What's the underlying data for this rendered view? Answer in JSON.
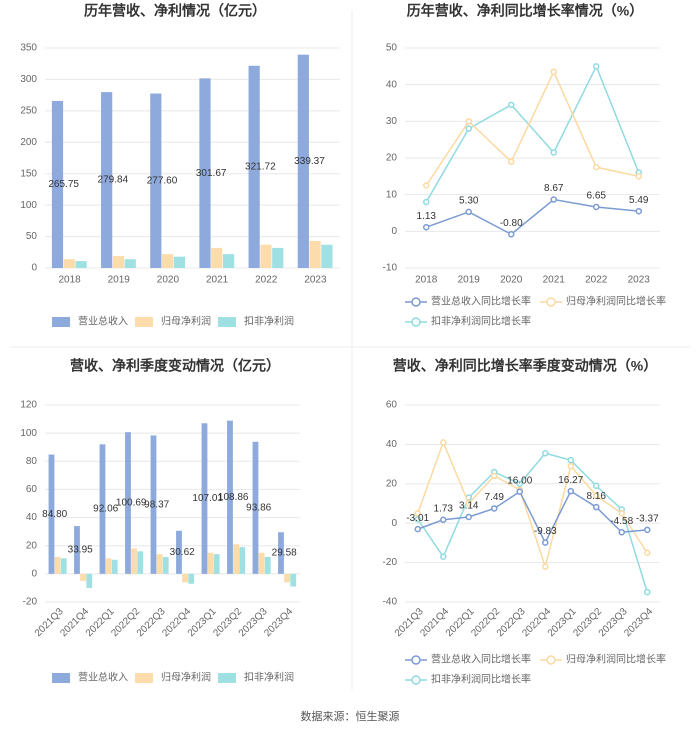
{
  "chart_data": [
    {
      "type": "bar",
      "title": "历年营收、净利情况（亿元）",
      "categories": [
        "2018",
        "2019",
        "2020",
        "2021",
        "2022",
        "2023"
      ],
      "series": [
        {
          "name": "营业总收入",
          "color": "#8eaadc",
          "values": [
            265.75,
            279.84,
            277.6,
            301.67,
            321.72,
            339.37
          ],
          "value_labels": [
            "265.75",
            "279.84",
            "277.60",
            "301.67",
            "321.72",
            "339.37"
          ]
        },
        {
          "name": "归母净利润",
          "color": "#fcdcaa",
          "values": [
            14,
            19,
            22,
            32,
            37,
            43
          ]
        },
        {
          "name": "扣非净利润",
          "color": "#9fe0e3",
          "values": [
            11,
            14,
            18,
            22,
            32,
            37
          ]
        }
      ],
      "ylim": [
        0,
        350
      ],
      "yticks": [
        0,
        50,
        100,
        150,
        200,
        250,
        300,
        350
      ],
      "grid": true
    },
    {
      "type": "line",
      "title": "历年营收、净利同比增长率情况（%）",
      "categories": [
        "2018",
        "2019",
        "2020",
        "2021",
        "2022",
        "2023"
      ],
      "series": [
        {
          "name": "营业总收入同比增长率",
          "color": "#7b9bd2",
          "values": [
            1.13,
            5.3,
            -0.8,
            8.67,
            6.65,
            5.49
          ],
          "value_labels": [
            "1.13",
            "5.30",
            "-0.80",
            "8.67",
            "6.65",
            "5.49"
          ]
        },
        {
          "name": "归母净利润同比增长率",
          "color": "#fcd9a1",
          "values": [
            12.5,
            30,
            19,
            43.5,
            17.5,
            15
          ]
        },
        {
          "name": "扣非净利润同比增长率",
          "color": "#8fdbe0",
          "values": [
            8,
            28,
            34.5,
            21.5,
            45,
            16
          ]
        }
      ],
      "ylim": [
        -10,
        50
      ],
      "yticks": [
        -10,
        0,
        10,
        20,
        30,
        40,
        50
      ],
      "grid": true
    },
    {
      "type": "bar",
      "title": "营收、净利季度变动情况（亿元）",
      "categories": [
        "2021Q3",
        "2021Q4",
        "2022Q1",
        "2022Q2",
        "2022Q3",
        "2022Q4",
        "2023Q1",
        "2023Q2",
        "2023Q3",
        "2023Q4"
      ],
      "series": [
        {
          "name": "营业总收入",
          "color": "#8eaadc",
          "values": [
            84.8,
            33.95,
            92.06,
            100.69,
            98.37,
            30.62,
            107.01,
            108.86,
            93.86,
            29.58
          ],
          "value_labels": [
            "84.80",
            "33.95",
            "92.06",
            "100.69",
            "98.37",
            "30.62",
            "107.01",
            "108.86",
            "93.86",
            "29.58"
          ]
        },
        {
          "name": "归母净利润",
          "color": "#fcdcaa",
          "values": [
            12,
            -5,
            11,
            18,
            14,
            -6,
            15,
            21,
            15,
            -6
          ]
        },
        {
          "name": "扣非净利润",
          "color": "#9fe0e3",
          "values": [
            11,
            -10,
            10,
            16,
            12,
            -7,
            14,
            19,
            12,
            -9
          ]
        }
      ],
      "ylim": [
        -20,
        120
      ],
      "yticks": [
        -20,
        0,
        20,
        40,
        60,
        80,
        100,
        120
      ],
      "grid": true
    },
    {
      "type": "line",
      "title": "营收、净利同比增长率季度变动情况（%）",
      "categories": [
        "2021Q3",
        "2021Q4",
        "2022Q1",
        "2022Q2",
        "2022Q3",
        "2022Q4",
        "2023Q1",
        "2023Q2",
        "2023Q3",
        "2023Q4"
      ],
      "series": [
        {
          "name": "营业总收入同比增长率",
          "color": "#7b9bd2",
          "values": [
            -3.01,
            1.73,
            3.14,
            7.49,
            16.0,
            -9.83,
            16.27,
            8.16,
            -4.58,
            -3.37
          ],
          "value_labels": [
            "-3.01",
            "1.73",
            "3.14",
            "7.49",
            "16.00",
            "-9.83",
            "16.27",
            "8.16",
            "-4.58",
            "-3.37"
          ]
        },
        {
          "name": "归母净利润同比增长率",
          "color": "#fcd9a1",
          "values": [
            5,
            41,
            10,
            24,
            17,
            -22,
            29,
            14,
            5,
            -15
          ]
        },
        {
          "name": "扣非净利润同比增长率",
          "color": "#8fdbe0",
          "values": [
            2,
            -17,
            13,
            26,
            20,
            35.5,
            32,
            19,
            7,
            -35
          ]
        }
      ],
      "ylim": [
        -40,
        60
      ],
      "yticks": [
        -40,
        -20,
        0,
        20,
        40,
        60
      ],
      "grid": true
    }
  ],
  "source": "数据来源：恒生聚源"
}
